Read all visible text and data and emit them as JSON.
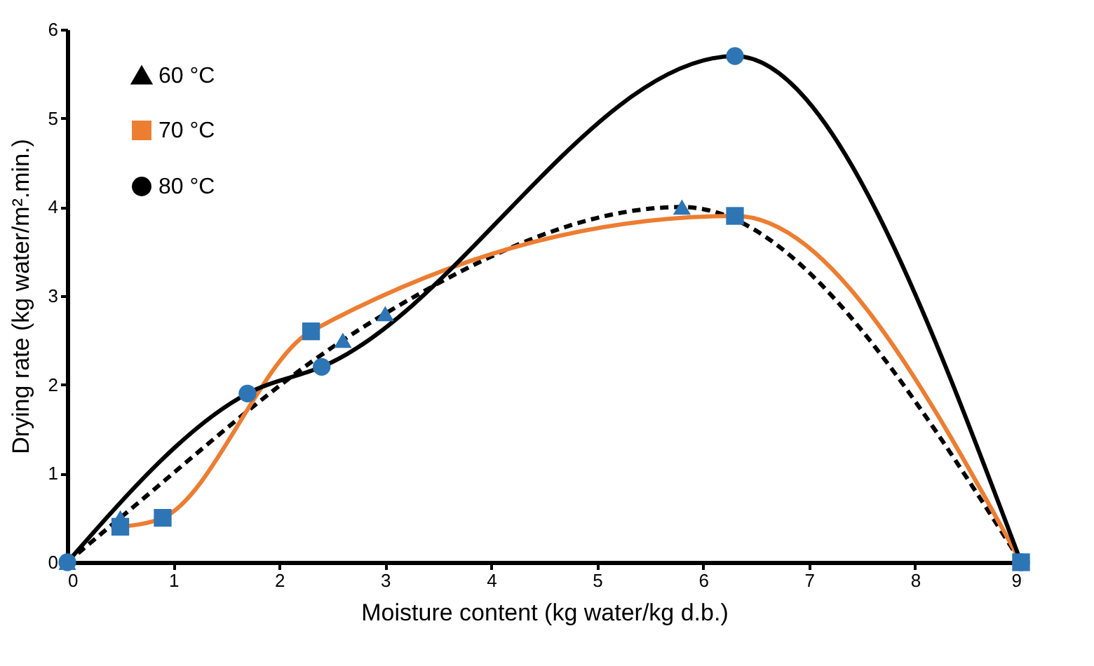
{
  "chart_data": {
    "type": "line",
    "xlabel": "Moisture content (kg water/kg d.b.)",
    "ylabel": "Drying rate (kg water/m².min.)",
    "xlim": [
      0,
      9
    ],
    "xticks": [
      0,
      1,
      2,
      3,
      4,
      5,
      6,
      7,
      8,
      9
    ],
    "ylim": [
      0,
      6
    ],
    "yticks": [
      0,
      1,
      2,
      3,
      4,
      5,
      6
    ],
    "grid": false,
    "legend": "top left",
    "series": [
      {
        "name": "60 °C",
        "color": "#000000",
        "marker": "triangle",
        "line_style": "dashed",
        "x": [
          0,
          0.5,
          2.6,
          3.0,
          5.8,
          9
        ],
        "values": [
          0,
          0.5,
          2.5,
          2.8,
          4.0,
          0
        ]
      },
      {
        "name": "70 °C",
        "color": "#ed7d31",
        "marker": "square",
        "line_style": "solid",
        "x": [
          0.5,
          0.9,
          2.3,
          6.3,
          9
        ],
        "values": [
          0.4,
          0.5,
          2.6,
          3.9,
          0
        ]
      },
      {
        "name": "80 °C",
        "color": "#000000",
        "marker": "circle",
        "line_style": "solid",
        "x": [
          0,
          1.7,
          2.4,
          6.3,
          9
        ],
        "values": [
          0,
          1.9,
          2.2,
          5.7,
          0
        ]
      }
    ]
  }
}
